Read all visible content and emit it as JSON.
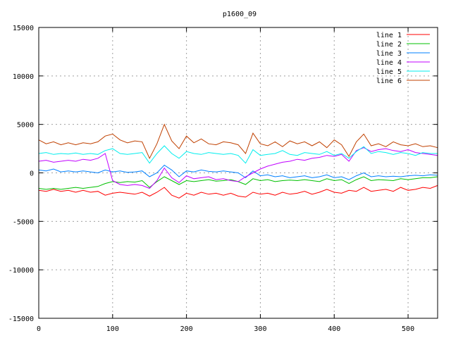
{
  "chart_data": {
    "type": "line",
    "title": "p1600_09",
    "xlabel": "",
    "ylabel": "",
    "xlim": [
      0,
      540
    ],
    "ylim": [
      -15000,
      15000
    ],
    "xticks": [
      0,
      100,
      200,
      300,
      400,
      500
    ],
    "yticks": [
      -15000,
      -10000,
      -5000,
      0,
      5000,
      10000,
      15000
    ],
    "grid": true,
    "legend_position": "top-right",
    "x": [
      0,
      10,
      20,
      30,
      40,
      50,
      60,
      70,
      80,
      90,
      100,
      110,
      120,
      130,
      140,
      150,
      160,
      170,
      180,
      190,
      200,
      210,
      220,
      230,
      240,
      250,
      260,
      270,
      280,
      290,
      300,
      310,
      320,
      330,
      340,
      350,
      360,
      370,
      380,
      390,
      400,
      410,
      420,
      430,
      440,
      450,
      460,
      470,
      480,
      490,
      500,
      510,
      520,
      530,
      540
    ],
    "series": [
      {
        "name": "line 1",
        "color": "#ff0000",
        "values": [
          -1800,
          -1900,
          -1700,
          -1900,
          -1800,
          -2000,
          -1800,
          -2000,
          -1900,
          -2300,
          -2100,
          -2000,
          -2100,
          -2200,
          -2000,
          -2400,
          -2000,
          -1500,
          -2300,
          -2600,
          -2100,
          -2300,
          -2000,
          -2200,
          -2100,
          -2300,
          -2100,
          -2400,
          -2500,
          -2000,
          -2200,
          -2100,
          -2300,
          -2000,
          -2200,
          -2100,
          -1900,
          -2200,
          -2000,
          -1700,
          -2000,
          -2100,
          -1800,
          -1900,
          -1500,
          -1900,
          -1800,
          -1700,
          -1900,
          -1500,
          -1800,
          -1700,
          -1500,
          -1600,
          -1300
        ]
      },
      {
        "name": "line 2",
        "color": "#00c000",
        "values": [
          -1600,
          -1700,
          -1600,
          -1700,
          -1600,
          -1500,
          -1600,
          -1500,
          -1400,
          -1100,
          -900,
          -1000,
          -900,
          -950,
          -800,
          -1500,
          -900,
          -400,
          -800,
          -1200,
          -800,
          -900,
          -800,
          -700,
          -850,
          -800,
          -700,
          -900,
          -1200,
          -600,
          -800,
          -700,
          -900,
          -800,
          -750,
          -800,
          -700,
          -800,
          -900,
          -600,
          -800,
          -700,
          -1100,
          -700,
          -400,
          -800,
          -700,
          -750,
          -800,
          -600,
          -700,
          -600,
          -500,
          -500,
          -400
        ]
      },
      {
        "name": "line 3",
        "color": "#0080ff",
        "values": [
          300,
          200,
          400,
          100,
          200,
          100,
          200,
          100,
          0,
          300,
          100,
          200,
          50,
          100,
          200,
          -400,
          0,
          800,
          300,
          -400,
          200,
          100,
          300,
          150,
          100,
          200,
          100,
          0,
          -500,
          200,
          -300,
          -200,
          -400,
          -300,
          -500,
          -400,
          -300,
          -500,
          -400,
          -200,
          -500,
          -400,
          -700,
          -300,
          0,
          -400,
          -300,
          -400,
          -350,
          -400,
          -300,
          -250,
          -300,
          -200,
          -250
        ]
      },
      {
        "name": "line 4",
        "color": "#c000ff",
        "values": [
          1200,
          1300,
          1100,
          1200,
          1300,
          1200,
          1400,
          1300,
          1500,
          2000,
          -800,
          -1200,
          -1300,
          -1200,
          -1300,
          -1600,
          -800,
          500,
          -500,
          -1000,
          -300,
          -600,
          -500,
          -400,
          -700,
          -600,
          -800,
          -900,
          -400,
          0,
          400,
          700,
          900,
          1100,
          1200,
          1400,
          1300,
          1500,
          1600,
          1800,
          1700,
          1900,
          1200,
          2300,
          2600,
          2200,
          2400,
          2500,
          2300,
          2200,
          2400,
          2100,
          2000,
          1900,
          1800
        ]
      },
      {
        "name": "line 5",
        "color": "#00eeee",
        "values": [
          2000,
          2100,
          1900,
          2000,
          1950,
          2050,
          1900,
          2000,
          1900,
          2300,
          2500,
          2000,
          1900,
          2000,
          2100,
          1000,
          2000,
          2800,
          2000,
          1500,
          2200,
          2000,
          1900,
          2100,
          2000,
          1900,
          2000,
          1800,
          1000,
          2400,
          1800,
          1900,
          2000,
          2300,
          1900,
          1800,
          2100,
          2000,
          1900,
          2200,
          1800,
          2000,
          1500,
          2200,
          2700,
          2000,
          2200,
          2100,
          1900,
          2100,
          2000,
          1800,
          2100,
          2000,
          2000
        ]
      },
      {
        "name": "line 6",
        "color": "#c04000",
        "values": [
          3400,
          3000,
          3200,
          2900,
          3100,
          2900,
          3100,
          3000,
          3200,
          3800,
          4000,
          3400,
          3100,
          3300,
          3200,
          1500,
          3000,
          5000,
          3300,
          2500,
          3800,
          3100,
          3500,
          3000,
          2900,
          3200,
          3100,
          2900,
          2000,
          4100,
          3000,
          2800,
          3200,
          2700,
          3300,
          3000,
          3200,
          2800,
          3200,
          2600,
          3400,
          2900,
          1700,
          3200,
          4000,
          2800,
          3000,
          2700,
          3200,
          2900,
          2800,
          3000,
          2700,
          2800,
          2600
        ]
      }
    ]
  }
}
